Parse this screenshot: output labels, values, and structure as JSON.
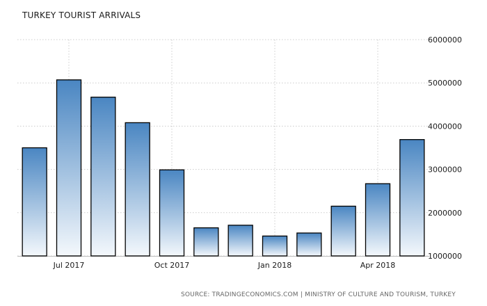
{
  "chart_data": {
    "type": "bar",
    "title": "TURKEY TOURIST ARRIVALS",
    "x": [
      "2017-06",
      "2017-07",
      "2017-08",
      "2017-09",
      "2017-10",
      "2017-11",
      "2017-12",
      "2018-01",
      "2018-02",
      "2018-03",
      "2018-04",
      "2018-05"
    ],
    "values": [
      3500000,
      5070000,
      4670000,
      4080000,
      2990000,
      1650000,
      1710000,
      1460000,
      1530000,
      2150000,
      2670000,
      3690000
    ],
    "x_tick_labels": [
      {
        "x": "2017-07",
        "label": "Jul 2017"
      },
      {
        "x": "2017-10",
        "label": "Oct 2017"
      },
      {
        "x": "2018-01",
        "label": "Jan 2018"
      },
      {
        "x": "2018-04",
        "label": "Apr 2018"
      }
    ],
    "ylim": [
      1000000,
      6000000
    ],
    "y_ticks": [
      1000000,
      2000000,
      3000000,
      4000000,
      5000000,
      6000000
    ],
    "y_axis_position": "right",
    "grid": true,
    "legend": "none",
    "source": "SOURCE: TRADINGECONOMICS.COM | MINISTRY OF CULTURE AND TOURISM, TURKEY",
    "colors": {
      "bar_top": "#4a86c2",
      "bar_bottom": "#f4f8fc",
      "bar_edge": "#000000"
    }
  }
}
